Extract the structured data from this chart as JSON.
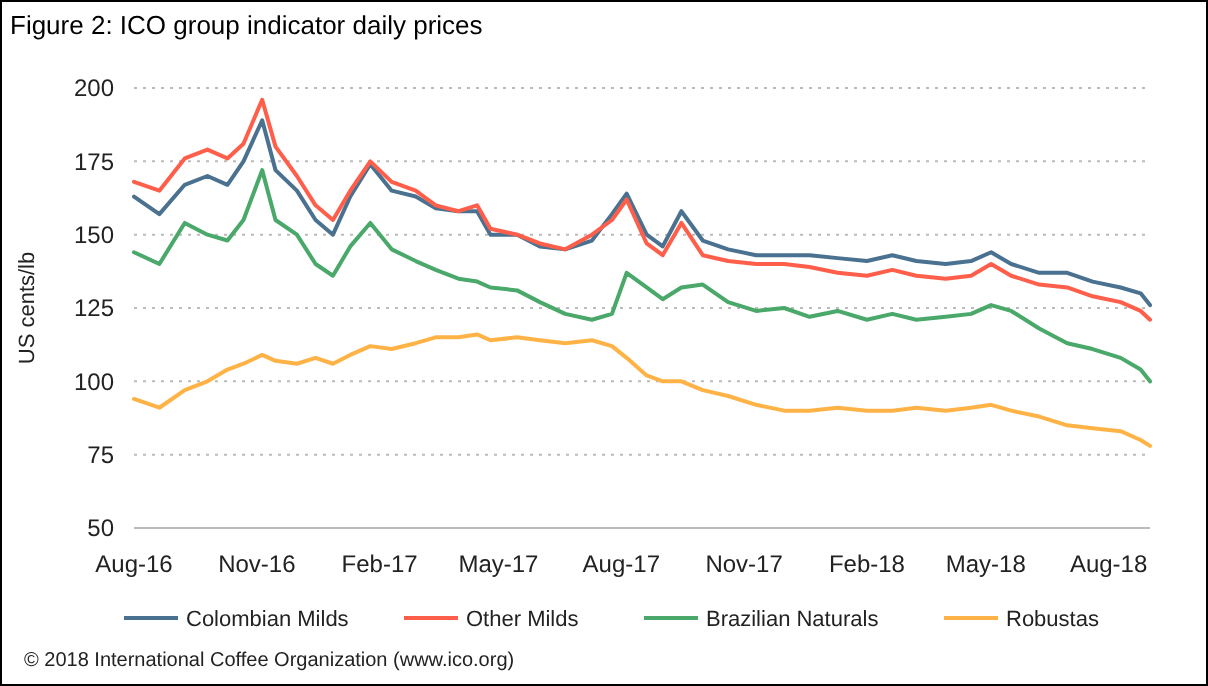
{
  "chart_data": {
    "type": "line",
    "title": "Figure 2: ICO group indicator daily prices",
    "ylabel": "US cents/lb",
    "annotations": [
      "© 2018 International Coffee Organization (www.ico.org)"
    ],
    "x": [
      "2016-08-01",
      "2016-08-20",
      "2016-09-08",
      "2016-09-25",
      "2016-10-10",
      "2016-10-22",
      "2016-11-05",
      "2016-11-15",
      "2016-12-01",
      "2016-12-15",
      "2016-12-28",
      "2017-01-10",
      "2017-01-25",
      "2017-02-10",
      "2017-02-28",
      "2017-03-15",
      "2017-04-01",
      "2017-04-15",
      "2017-04-25",
      "2017-05-15",
      "2017-06-01",
      "2017-06-20",
      "2017-07-10",
      "2017-07-25",
      "2017-08-05",
      "2017-08-20",
      "2017-09-01",
      "2017-09-15",
      "2017-10-01",
      "2017-10-20",
      "2017-11-10",
      "2017-12-01",
      "2017-12-20",
      "2018-01-10",
      "2018-02-01",
      "2018-02-20",
      "2018-03-10",
      "2018-04-01",
      "2018-04-20",
      "2018-05-05",
      "2018-05-20",
      "2018-06-10",
      "2018-07-01",
      "2018-07-20",
      "2018-08-10",
      "2018-08-25",
      "2018-09-01"
    ],
    "series": [
      {
        "name": "Colombian Milds",
        "color": "#4a7290",
        "values": [
          163,
          157,
          167,
          170,
          167,
          175,
          189,
          172,
          165,
          155,
          150,
          163,
          174,
          165,
          163,
          159,
          158,
          158,
          150,
          150,
          146,
          145,
          148,
          157,
          164,
          150,
          146,
          158,
          148,
          145,
          143,
          143,
          143,
          142,
          141,
          143,
          141,
          140,
          141,
          144,
          140,
          137,
          137,
          134,
          132,
          130,
          126
        ]
      },
      {
        "name": "Other Milds",
        "color": "#ff5f4a",
        "values": [
          168,
          165,
          176,
          179,
          176,
          181,
          196,
          180,
          170,
          160,
          155,
          165,
          175,
          168,
          165,
          160,
          158,
          160,
          152,
          150,
          147,
          145,
          150,
          155,
          162,
          147,
          143,
          154,
          143,
          141,
          140,
          140,
          139,
          137,
          136,
          138,
          136,
          135,
          136,
          140,
          136,
          133,
          132,
          129,
          127,
          124,
          121
        ]
      },
      {
        "name": "Brazilian Naturals",
        "color": "#4aa86a",
        "values": [
          144,
          140,
          154,
          150,
          148,
          155,
          172,
          155,
          150,
          140,
          136,
          146,
          154,
          145,
          141,
          138,
          135,
          134,
          132,
          131,
          127,
          123,
          121,
          123,
          137,
          132,
          128,
          132,
          133,
          127,
          124,
          125,
          122,
          124,
          121,
          123,
          121,
          122,
          123,
          126,
          124,
          118,
          113,
          111,
          108,
          104,
          100
        ]
      },
      {
        "name": "Robustas",
        "color": "#ffb347",
        "values": [
          94,
          91,
          97,
          100,
          104,
          106,
          109,
          107,
          106,
          108,
          106,
          109,
          112,
          111,
          113,
          115,
          115,
          116,
          114,
          115,
          114,
          113,
          114,
          112,
          108,
          102,
          100,
          100,
          97,
          95,
          92,
          90,
          90,
          91,
          90,
          90,
          91,
          90,
          91,
          92,
          90,
          88,
          85,
          84,
          83,
          80,
          78
        ]
      }
    ],
    "xlim": [
      "2016-08-01",
      "2018-09-01"
    ],
    "xticks": [
      {
        "value": "2016-08-01",
        "label": "Aug-16"
      },
      {
        "value": "2016-11-01",
        "label": "Nov-16"
      },
      {
        "value": "2017-02-01",
        "label": "Feb-17"
      },
      {
        "value": "2017-05-01",
        "label": "May-17"
      },
      {
        "value": "2017-08-01",
        "label": "Aug-17"
      },
      {
        "value": "2017-11-01",
        "label": "Nov-17"
      },
      {
        "value": "2018-02-01",
        "label": "Feb-18"
      },
      {
        "value": "2018-05-01",
        "label": "May-18"
      },
      {
        "value": "2018-08-01",
        "label": "Aug-18"
      }
    ],
    "ylim": [
      50,
      200
    ],
    "yticks": [
      50,
      75,
      100,
      125,
      150,
      175,
      200
    ],
    "grid": "y",
    "legend": "bottom",
    "marker": "none",
    "line_style": "solid"
  }
}
